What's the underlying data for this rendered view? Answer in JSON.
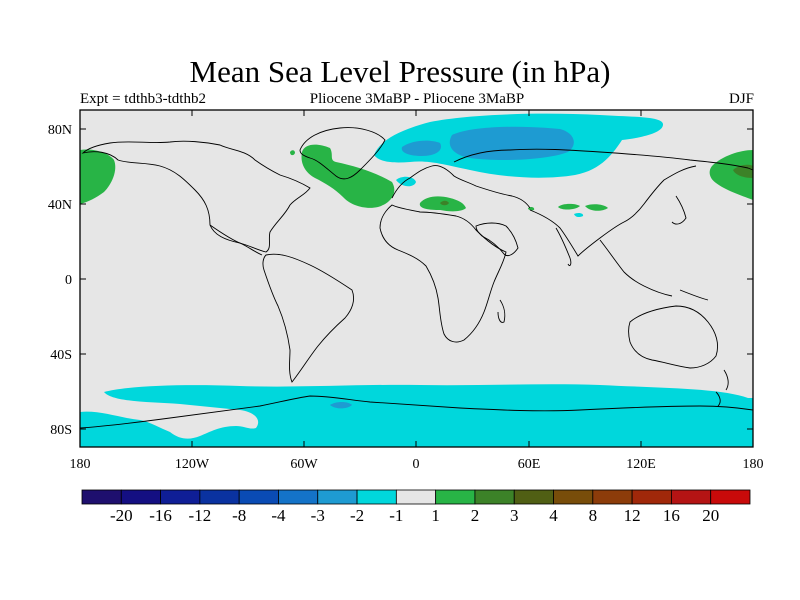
{
  "plot": {
    "title": "Mean Sea Level Pressure (in hPa)",
    "left_string": "Expt = tdthb3-tdthb2",
    "center_string": "Pliocene   3MaBP - Pliocene   3MaBP",
    "right_string": "DJF"
  },
  "axes": {
    "x_ticks": [
      {
        "label": "180",
        "lon": -180
      },
      {
        "label": "120W",
        "lon": -120
      },
      {
        "label": "60W",
        "lon": -60
      },
      {
        "label": "0",
        "lon": 0
      },
      {
        "label": "60E",
        "lon": 60
      },
      {
        "label": "120E",
        "lon": 120
      },
      {
        "label": "180",
        "lon": 180
      }
    ],
    "y_ticks": [
      {
        "label": "80N",
        "lat": 80
      },
      {
        "label": "40N",
        "lat": 40
      },
      {
        "label": "0",
        "lat": 0
      },
      {
        "label": "40S",
        "lat": -40
      },
      {
        "label": "80S",
        "lat": -80
      }
    ]
  },
  "colorbar": {
    "colors": [
      "#1e0f6e",
      "#140f82",
      "#0f1e96",
      "#0a32a0",
      "#0a4bb4",
      "#1473c8",
      "#1e9bd2",
      "#00d7dc",
      "#e6e6e6",
      "#28b446",
      "#3c8228",
      "#505f14",
      "#784d0a",
      "#8c3c0a",
      "#a0280a",
      "#b41414",
      "#c80a0a"
    ],
    "labels": [
      "-20",
      "-16",
      "-12",
      "-8",
      "-4",
      "-3",
      "-2",
      "-1",
      "1",
      "2",
      "3",
      "4",
      "8",
      "12",
      "16",
      "20"
    ]
  }
}
